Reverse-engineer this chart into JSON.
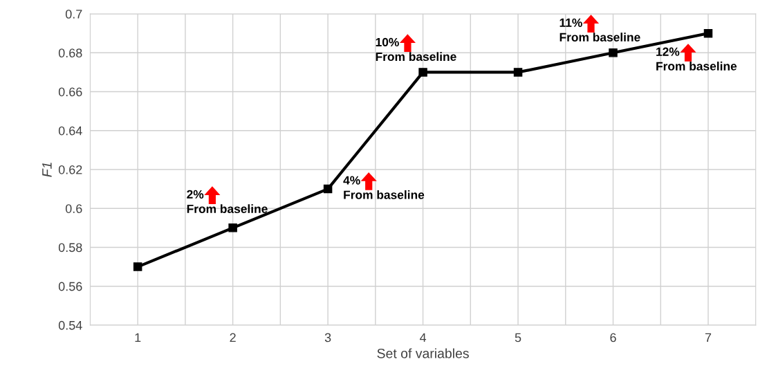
{
  "chart_data": {
    "type": "line",
    "xlabel": "Set of variables",
    "ylabel": "F1",
    "categories": [
      "1",
      "2",
      "3",
      "4",
      "5",
      "6",
      "7"
    ],
    "series": [
      {
        "color": "#000000",
        "values": [
          0.57,
          0.59,
          0.61,
          0.67,
          0.67,
          0.68,
          0.69
        ]
      }
    ],
    "ylim": [
      0.54,
      0.7
    ],
    "yticks": [
      0.54,
      0.56,
      0.58,
      0.6,
      0.62,
      0.64,
      0.66,
      0.68,
      0.7
    ],
    "grid": true,
    "marker": "square",
    "line_style": "solid",
    "annotations": [
      {
        "text": "2%\nFrom baseline",
        "x": "2",
        "y": 0.59
      },
      {
        "text": "4%\nFrom baseline",
        "x": "3",
        "y": 0.61
      },
      {
        "text": "10%\nFrom baseline",
        "x": "4",
        "y": 0.67
      },
      {
        "text": "11%\nFrom baseline",
        "x": "6",
        "y": 0.68
      },
      {
        "text": "12%\nFrom baseline",
        "x": "7",
        "y": 0.69
      }
    ]
  }
}
